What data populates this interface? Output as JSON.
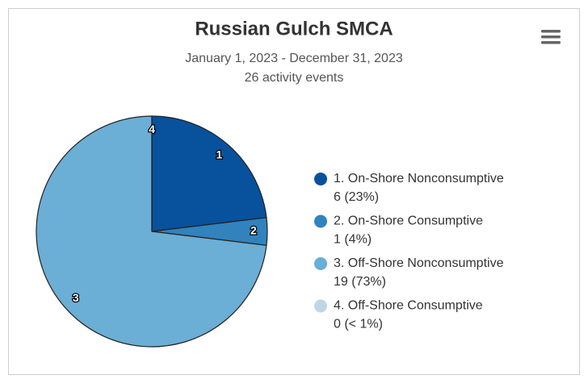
{
  "chart_data": {
    "type": "pie",
    "title": "Russian Gulch SMCA",
    "subtitle": [
      "January 1, 2023 - December 31, 2023",
      "26 activity events"
    ],
    "categories": [
      "1. On-Shore Nonconsumptive",
      "2. On-Shore Consumptive",
      "3. Off-Shore Nonconsumptive",
      "4. Off-Shore Consumptive"
    ],
    "values": [
      6,
      1,
      19,
      0
    ],
    "value_labels": [
      "6 (23%)",
      "1 (4%)",
      "19 (73%)",
      "0 (< 1%)"
    ],
    "slice_labels": [
      "1",
      "2",
      "3",
      "4"
    ],
    "colors": [
      "#08519c",
      "#3182bd",
      "#6baed6",
      "#bdd7e7"
    ],
    "legend": "right"
  }
}
